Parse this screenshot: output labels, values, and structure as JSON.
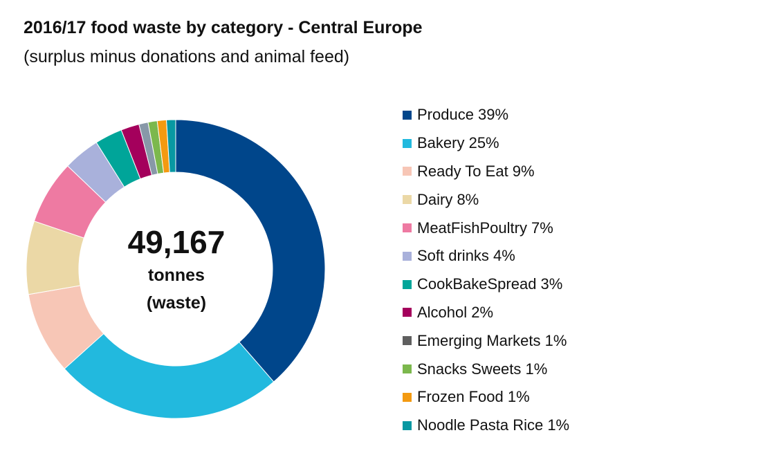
{
  "title": "2016/17 food waste by category - Central Europe",
  "subtitle": "(surplus minus donations and animal feed)",
  "center": {
    "value": "49,167",
    "line1": "tonnes",
    "line2": "(waste)"
  },
  "chart_data": {
    "type": "pie",
    "donut": true,
    "title": "2016/17 food waste by category - Central Europe",
    "subtitle": "(surplus minus donations and animal feed)",
    "total": 49167,
    "total_label": "49,167 tonnes (waste)",
    "legend_position": "right",
    "categories": [
      "Produce",
      "Bakery",
      "Ready To Eat",
      "Dairy",
      "MeatFishPoultry",
      "Soft drinks",
      "CookBakeSpread",
      "Alcohol",
      "Emerging Markets",
      "Snacks Sweets",
      "Frozen Food",
      "Noodle Pasta Rice"
    ],
    "values": [
      39,
      25,
      9,
      8,
      7,
      4,
      3,
      2,
      1,
      1,
      1,
      1
    ],
    "colors": [
      "#00468b",
      "#22b9de",
      "#f7c6b6",
      "#ebd8a6",
      "#ee7aa2",
      "#a9b1db",
      "#00a599",
      "#a4005c",
      "#8898a8",
      "#7cb84d",
      "#f39a11",
      "#0898a2"
    ],
    "legend_colors": [
      "#00468b",
      "#22b9de",
      "#f7c6b6",
      "#ebd8a6",
      "#ee7aa2",
      "#a9b1db",
      "#00a599",
      "#a4005c",
      "#5f5f5f",
      "#7cb84d",
      "#f39a11",
      "#0898a2"
    ],
    "labels": [
      "Produce 39%",
      "Bakery 25%",
      "Ready To Eat 9%",
      "Dairy 8%",
      "MeatFishPoultry 7%",
      "Soft drinks 4%",
      "CookBakeSpread 3%",
      "Alcohol 2%",
      "Emerging Markets 1%",
      "Snacks Sweets 1%",
      "Frozen Food 1%",
      "Noodle Pasta Rice 1%"
    ]
  }
}
